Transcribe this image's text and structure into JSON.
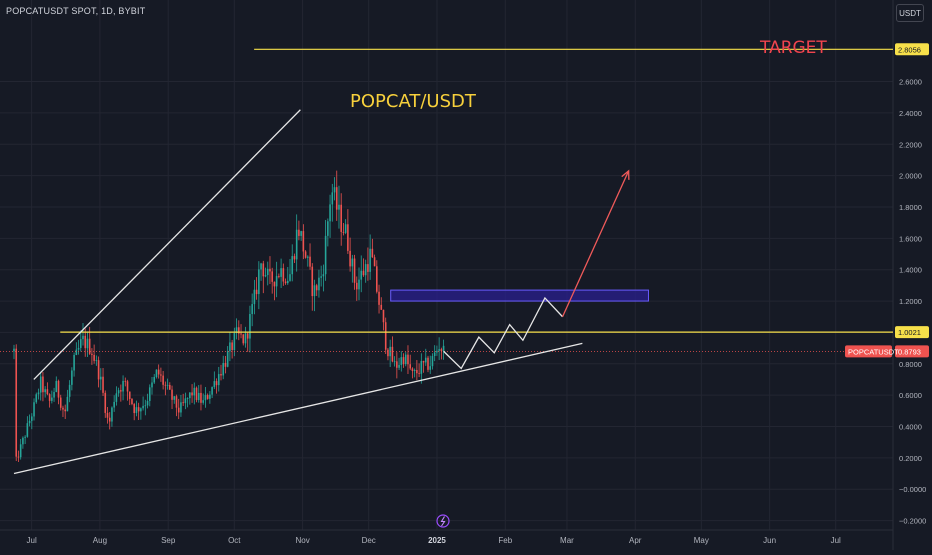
{
  "header": {
    "symbol_title": "POPCATUSDT SPOT, 1D, BYBIT",
    "currency_button": "USDT"
  },
  "colors": {
    "background": "#161a25",
    "grid": "#232632",
    "candle_up": "#26a69a",
    "candle_down": "#ef5350",
    "level_line": "#f7e04a",
    "annotation_white": "#e6e6e6",
    "target_text": "#f0444e",
    "title_text": "#f7d03c",
    "zone_fill": "#2a1f8f",
    "zone_border": "#6a5cff",
    "arrow": "#f05a5a",
    "price_line": "#ef5350"
  },
  "annotations": {
    "title": "POPCAT/USDT",
    "target_label": "TARGET",
    "target_price": "2.8056",
    "resistance_price": "1.0021",
    "current_symbol_tag": "POPCATUSDT",
    "current_price": "0.8793"
  },
  "chart_data": {
    "type": "candlestick",
    "x_axis_labels": [
      "Jul",
      "Aug",
      "Sep",
      "Oct",
      "Nov",
      "Dec",
      "2025",
      "Feb",
      "Mar",
      "Apr",
      "May",
      "Jun",
      "Jul"
    ],
    "y_axis_labels": [
      "2.6000",
      "2.4000",
      "2.2000",
      "2.0000",
      "1.8000",
      "1.6000",
      "1.4000",
      "1.2000",
      "1.0000",
      "0.8000",
      "0.6000",
      "0.4000",
      "0.2000",
      "−0.0000",
      "−0.2000"
    ],
    "y_range": [
      -0.26,
      3.12
    ],
    "price_path_knots": [
      [
        "2024-06-24",
        0.18
      ],
      [
        "2024-07-02",
        0.52
      ],
      [
        "2024-07-05",
        0.68
      ],
      [
        "2024-07-09",
        0.55
      ],
      [
        "2024-07-12",
        0.66
      ],
      [
        "2024-07-16",
        0.48
      ],
      [
        "2024-07-20",
        0.8
      ],
      [
        "2024-07-24",
        0.95
      ],
      [
        "2024-07-28",
        0.9
      ],
      [
        "2024-08-01",
        0.72
      ],
      [
        "2024-08-05",
        0.4
      ],
      [
        "2024-08-08",
        0.62
      ],
      [
        "2024-08-12",
        0.68
      ],
      [
        "2024-08-17",
        0.5
      ],
      [
        "2024-08-22",
        0.56
      ],
      [
        "2024-08-27",
        0.75
      ],
      [
        "2024-09-01",
        0.62
      ],
      [
        "2024-09-06",
        0.5
      ],
      [
        "2024-09-12",
        0.62
      ],
      [
        "2024-09-17",
        0.55
      ],
      [
        "2024-09-22",
        0.68
      ],
      [
        "2024-09-27",
        0.82
      ],
      [
        "2024-10-02",
        0.98
      ],
      [
        "2024-10-06",
        0.95
      ],
      [
        "2024-10-10",
        1.2
      ],
      [
        "2024-10-13",
        1.45
      ],
      [
        "2024-10-17",
        1.32
      ],
      [
        "2024-10-22",
        1.4
      ],
      [
        "2024-10-26",
        1.35
      ],
      [
        "2024-10-30",
        1.68
      ],
      [
        "2024-11-03",
        1.45
      ],
      [
        "2024-11-06",
        1.25
      ],
      [
        "2024-11-10",
        1.38
      ],
      [
        "2024-11-14",
        1.92
      ],
      [
        "2024-11-18",
        1.72
      ],
      [
        "2024-11-21",
        1.62
      ],
      [
        "2024-11-25",
        1.3
      ],
      [
        "2024-11-29",
        1.4
      ],
      [
        "2024-12-02",
        1.5
      ],
      [
        "2024-12-05",
        1.25
      ],
      [
        "2024-12-09",
        0.92
      ],
      [
        "2024-12-13",
        0.78
      ],
      [
        "2024-12-17",
        0.85
      ],
      [
        "2024-12-21",
        0.72
      ],
      [
        "2024-12-25",
        0.78
      ],
      [
        "2024-12-29",
        0.8
      ],
      [
        "2025-01-02",
        0.92
      ],
      [
        "2025-01-04",
        0.88
      ]
    ],
    "candle_count": 194,
    "levels": [
      {
        "name": "target",
        "price": 2.8056,
        "from": "2024-10-10",
        "color": "#f7e04a"
      },
      {
        "name": "resistance",
        "price": 1.0021,
        "from": "2024-07-14",
        "color": "#f7e04a"
      }
    ],
    "current_price": 0.8793,
    "trendlines": [
      {
        "name": "support-trendline",
        "points": [
          [
            "2024-06-23",
            0.1
          ],
          [
            "2025-03-08",
            0.93
          ]
        ]
      },
      {
        "name": "channel-upper-line",
        "points": [
          [
            "2024-07-02",
            0.7
          ],
          [
            "2024-10-31",
            2.42
          ]
        ]
      }
    ],
    "projection_path": [
      [
        "2025-01-04",
        0.88
      ],
      [
        "2025-01-12",
        0.77
      ],
      [
        "2025-01-20",
        0.97
      ],
      [
        "2025-01-27",
        0.87
      ],
      [
        "2025-02-03",
        1.05
      ],
      [
        "2025-02-09",
        0.95
      ],
      [
        "2025-02-19",
        1.22
      ],
      [
        "2025-02-27",
        1.1
      ]
    ],
    "projection_arrow": [
      [
        "2025-02-27",
        1.1
      ],
      [
        "2025-03-29",
        2.03
      ]
    ],
    "zone": {
      "from": "2024-12-11",
      "to": "2025-04-07",
      "top": 1.27,
      "bottom": 1.2
    },
    "grid": true,
    "legend": "none"
  }
}
